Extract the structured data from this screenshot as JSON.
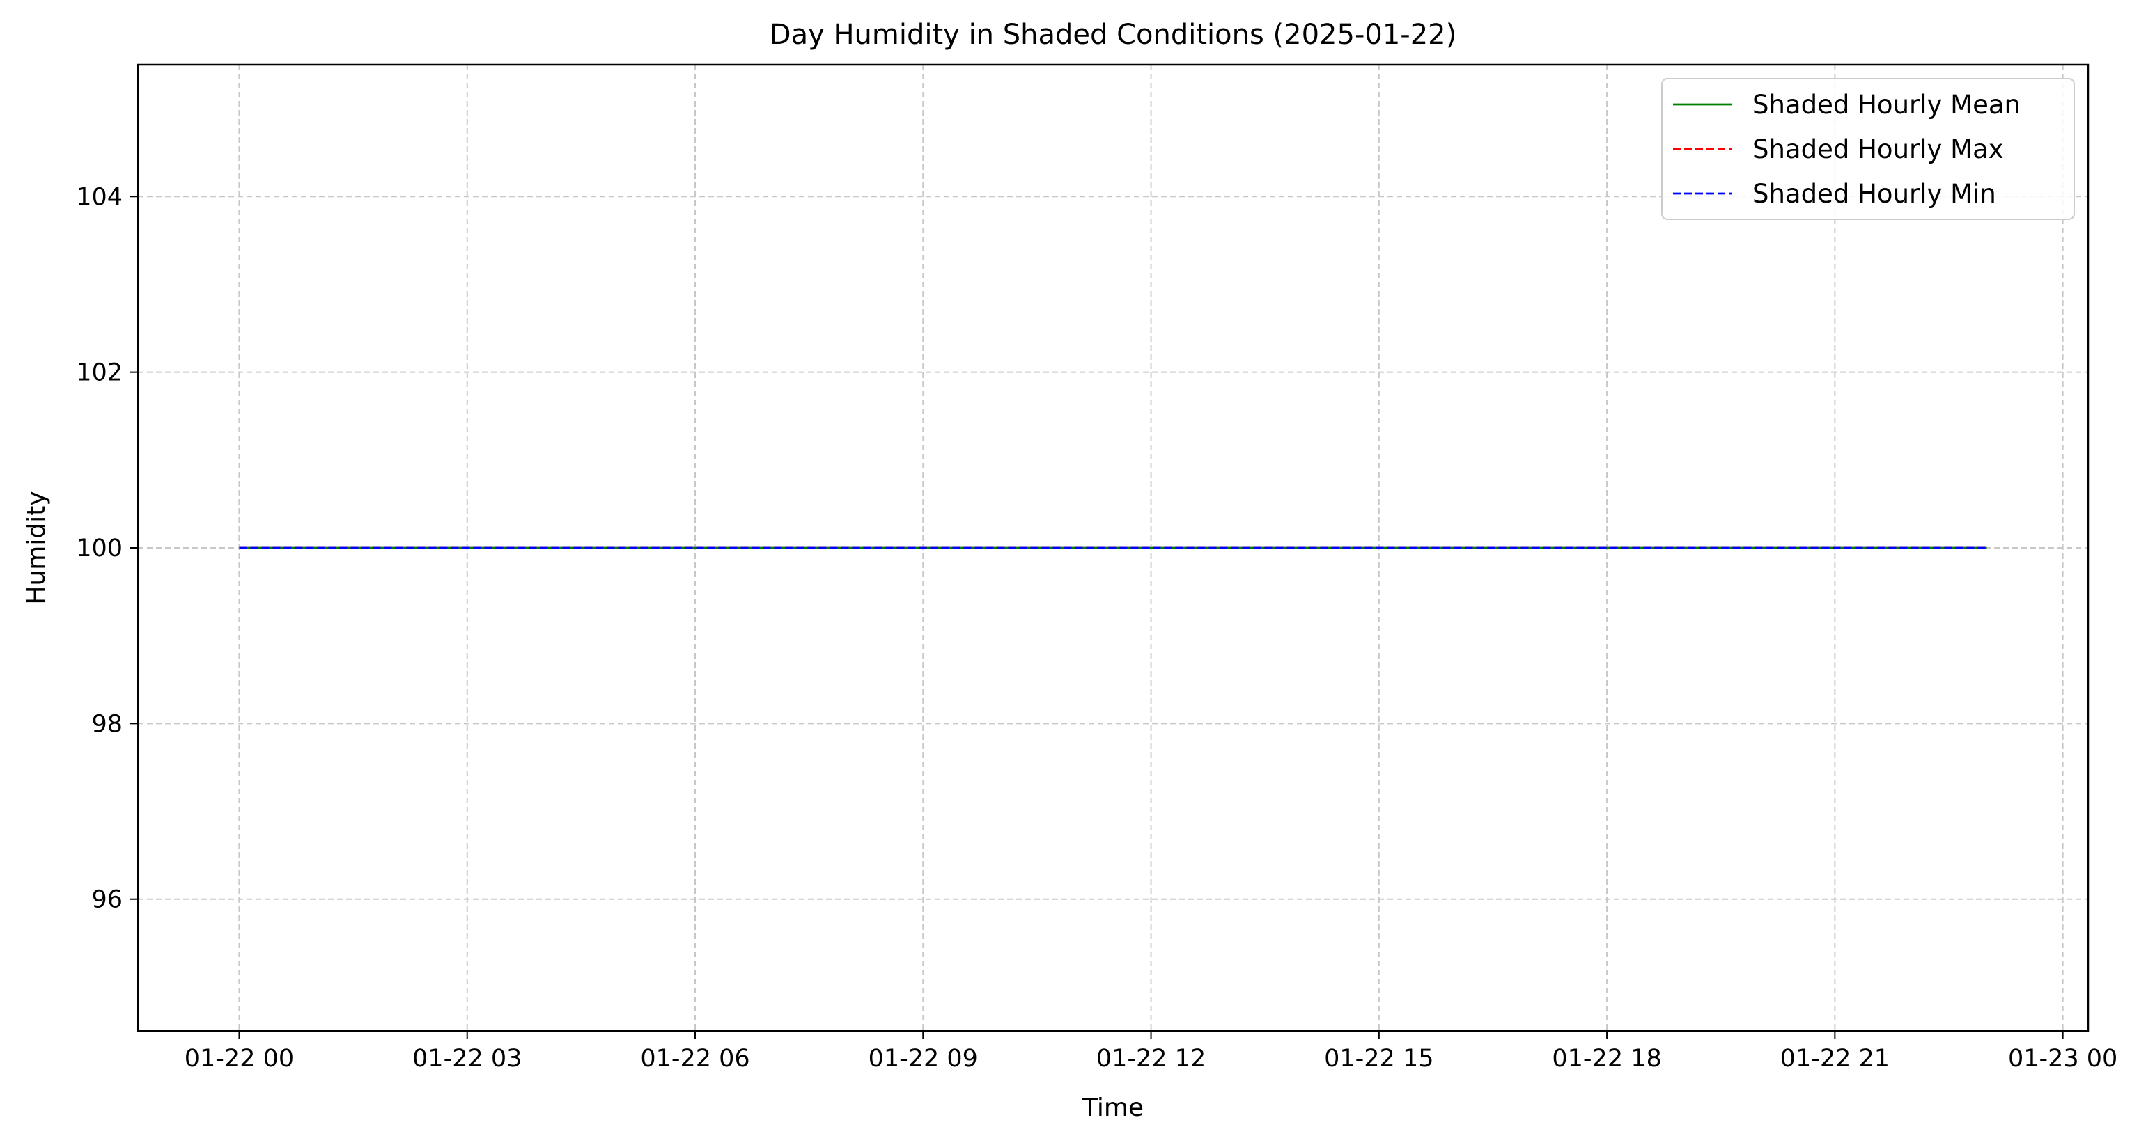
{
  "chart_data": {
    "type": "line",
    "title": "Day Humidity in Shaded Conditions (2025-01-22)",
    "xlabel": "Time",
    "ylabel": "Humidity",
    "xlim": [
      "2025-01-21 22:40",
      "2025-01-23 00:20"
    ],
    "ylim": [
      94.5,
      105.5
    ],
    "x_ticks": [
      {
        "value": "2025-01-22 00:00",
        "label": "01-22 00"
      },
      {
        "value": "2025-01-22 03:00",
        "label": "01-22 03"
      },
      {
        "value": "2025-01-22 06:00",
        "label": "01-22 06"
      },
      {
        "value": "2025-01-22 09:00",
        "label": "01-22 09"
      },
      {
        "value": "2025-01-22 12:00",
        "label": "01-22 12"
      },
      {
        "value": "2025-01-22 15:00",
        "label": "01-22 15"
      },
      {
        "value": "2025-01-22 18:00",
        "label": "01-22 18"
      },
      {
        "value": "2025-01-22 21:00",
        "label": "01-22 21"
      },
      {
        "value": "2025-01-23 00:00",
        "label": "01-23 00"
      }
    ],
    "y_ticks": [
      96,
      98,
      100,
      102,
      104
    ],
    "grid": true,
    "legend_position": "top-right",
    "x": [
      "2025-01-22 00:00",
      "2025-01-22 01:00",
      "2025-01-22 02:00",
      "2025-01-22 03:00",
      "2025-01-22 04:00",
      "2025-01-22 05:00",
      "2025-01-22 06:00",
      "2025-01-22 07:00",
      "2025-01-22 08:00",
      "2025-01-22 09:00",
      "2025-01-22 10:00",
      "2025-01-22 11:00",
      "2025-01-22 12:00",
      "2025-01-22 13:00",
      "2025-01-22 14:00",
      "2025-01-22 15:00",
      "2025-01-22 16:00",
      "2025-01-22 17:00",
      "2025-01-22 18:00",
      "2025-01-22 19:00",
      "2025-01-22 20:00",
      "2025-01-22 21:00",
      "2025-01-22 22:00",
      "2025-01-22 23:00"
    ],
    "series": [
      {
        "name": "Shaded Hourly Mean",
        "color": "#008000",
        "dashed": false,
        "values": [
          100,
          100,
          100,
          100,
          100,
          100,
          100,
          100,
          100,
          100,
          100,
          100,
          100,
          100,
          100,
          100,
          100,
          100,
          100,
          100,
          100,
          100,
          100,
          100
        ]
      },
      {
        "name": "Shaded Hourly Max",
        "color": "#ff0000",
        "dashed": true,
        "values": [
          100,
          100,
          100,
          100,
          100,
          100,
          100,
          100,
          100,
          100,
          100,
          100,
          100,
          100,
          100,
          100,
          100,
          100,
          100,
          100,
          100,
          100,
          100,
          100
        ]
      },
      {
        "name": "Shaded Hourly Min",
        "color": "#0000ff",
        "dashed": true,
        "values": [
          100,
          100,
          100,
          100,
          100,
          100,
          100,
          100,
          100,
          100,
          100,
          100,
          100,
          100,
          100,
          100,
          100,
          100,
          100,
          100,
          100,
          100,
          100,
          100
        ]
      }
    ]
  }
}
